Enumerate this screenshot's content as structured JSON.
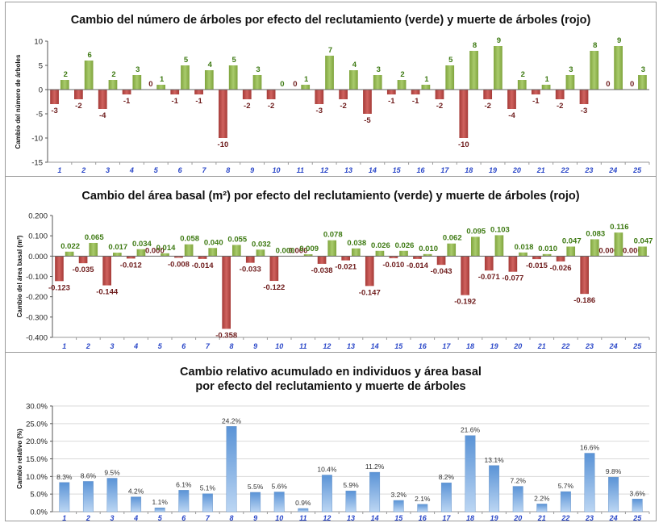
{
  "chart_data": [
    {
      "type": "bar",
      "title": "Cambio del número de árboles por efecto del reclutamiento (verde) y muerte de árboles (rojo)",
      "ylabel": "Cambio del número de árboles",
      "xlabel": "",
      "ylim": [
        -15,
        10
      ],
      "yticks": [
        "10",
        "5",
        "0",
        "-5",
        "-10",
        "-15"
      ],
      "yticks_values": [
        10,
        5,
        0,
        -5,
        -10,
        -15
      ],
      "grid": false,
      "categories": [
        "1",
        "2",
        "3",
        "4",
        "5",
        "6",
        "7",
        "8",
        "9",
        "10",
        "11",
        "12",
        "13",
        "14",
        "15",
        "16",
        "17",
        "18",
        "19",
        "20",
        "21",
        "22",
        "23",
        "24",
        "25"
      ],
      "series": [
        {
          "values": [
            -3,
            -2,
            -4,
            -1,
            0,
            -1,
            -1,
            -10,
            -2,
            -2,
            0,
            -3,
            -2,
            -5,
            -1,
            -1,
            -2,
            -10,
            -2,
            -4,
            -1,
            -2,
            -3,
            0,
            0
          ],
          "labels": [
            "-3",
            "-2",
            "-4",
            "-1",
            "0",
            "-1",
            "-1",
            "-10",
            "-2",
            "-2",
            "0",
            "-3",
            "-2",
            "-5",
            "-1",
            "-1",
            "-2",
            "-10",
            "-2",
            "-4",
            "-1",
            "-2",
            "-3",
            "0",
            "0"
          ],
          "color": "#c0504d"
        },
        {
          "values": [
            2,
            6,
            2,
            3,
            1,
            5,
            4,
            5,
            3,
            0,
            1,
            7,
            4,
            3,
            2,
            1,
            5,
            8,
            9,
            2,
            1,
            3,
            8,
            9,
            3
          ],
          "labels": [
            "2",
            "6",
            "2",
            "3",
            "1",
            "5",
            "4",
            "5",
            "3",
            "0",
            "1",
            "7",
            "4",
            "3",
            "2",
            "1",
            "5",
            "8",
            "9",
            "2",
            "1",
            "3",
            "8",
            "9",
            "3"
          ],
          "color": "#9bbb59"
        }
      ]
    },
    {
      "type": "bar",
      "title": "Cambio del área basal (m²) por efecto del reclutamiento (verde) y muerte de árboles (rojo)",
      "ylabel": "Cambio del área basal (m²)",
      "xlabel": "",
      "ylim": [
        -0.4,
        0.2
      ],
      "yticks": [
        "0.200",
        "0.100",
        "0.000",
        "-0.100",
        "-0.200",
        "-0.300",
        "-0.400"
      ],
      "yticks_values": [
        0.2,
        0.1,
        0,
        -0.1,
        -0.2,
        -0.3,
        -0.4
      ],
      "grid": false,
      "categories": [
        "1",
        "2",
        "3",
        "4",
        "5",
        "6",
        "7",
        "8",
        "9",
        "10",
        "11",
        "12",
        "13",
        "14",
        "15",
        "16",
        "17",
        "18",
        "19",
        "20",
        "21",
        "22",
        "23",
        "24",
        "25"
      ],
      "series": [
        {
          "values": [
            -0.123,
            -0.035,
            -0.144,
            -0.012,
            0.0,
            -0.008,
            -0.014,
            -0.358,
            -0.033,
            -0.122,
            0.0,
            -0.038,
            -0.021,
            -0.147,
            -0.01,
            -0.014,
            -0.043,
            -0.192,
            -0.071,
            -0.077,
            -0.015,
            -0.026,
            -0.186,
            0.0,
            0.0
          ],
          "labels": [
            "-0.123",
            "-0.035",
            "-0.144",
            "-0.012",
            "0.000",
            "-0.008",
            "-0.014",
            "-0.358",
            "-0.033",
            "-0.122",
            "0.000",
            "-0.038",
            "-0.021",
            "-0.147",
            "-0.010",
            "-0.014",
            "-0.043",
            "-0.192",
            "-0.071",
            "-0.077",
            "-0.015",
            "-0.026",
            "-0.186",
            "0.000",
            "0.000"
          ],
          "color": "#c0504d"
        },
        {
          "values": [
            0.022,
            0.065,
            0.017,
            0.034,
            0.014,
            0.058,
            0.04,
            0.055,
            0.032,
            0.0,
            0.009,
            0.078,
            0.038,
            0.026,
            0.026,
            0.01,
            0.062,
            0.095,
            0.103,
            0.018,
            0.01,
            0.047,
            0.083,
            0.116,
            0.047
          ],
          "labels": [
            "0.022",
            "0.065",
            "0.017",
            "0.034",
            "0.014",
            "0.058",
            "0.040",
            "0.055",
            "0.032",
            "0.000",
            "0.009",
            "0.078",
            "0.038",
            "0.026",
            "0.026",
            "0.010",
            "0.062",
            "0.095",
            "0.103",
            "0.018",
            "0.010",
            "0.047",
            "0.083",
            "0.116",
            "0.047"
          ],
          "color": "#9bbb59"
        }
      ]
    },
    {
      "type": "bar",
      "title": "Cambio relativo acumulado en individuos y área basal",
      "subtitle": "por efecto del reclutamiento y muerte de árboles",
      "ylabel": "Cambio relativo (%)",
      "xlabel": "",
      "ylim": [
        0,
        30
      ],
      "yticks": [
        "30.0%",
        "25.0%",
        "20.0%",
        "15.0%",
        "10.0%",
        "5.0%",
        "0.0%"
      ],
      "yticks_values": [
        30,
        25,
        20,
        15,
        10,
        5,
        0
      ],
      "grid": true,
      "categories": [
        "1",
        "2",
        "3",
        "4",
        "5",
        "6",
        "7",
        "8",
        "9",
        "10",
        "11",
        "12",
        "13",
        "14",
        "15",
        "16",
        "17",
        "18",
        "19",
        "20",
        "21",
        "22",
        "23",
        "24",
        "25"
      ],
      "series": [
        {
          "values": [
            8.3,
            8.6,
            9.5,
            4.2,
            1.1,
            6.1,
            5.1,
            24.2,
            5.5,
            5.6,
            0.9,
            10.4,
            5.9,
            11.2,
            3.2,
            2.1,
            8.2,
            21.6,
            13.1,
            7.2,
            2.2,
            5.7,
            16.6,
            9.8,
            3.6
          ],
          "labels": [
            "8.3%",
            "8.6%",
            "9.5%",
            "4.2%",
            "1.1%",
            "6.1%",
            "5.1%",
            "24.2%",
            "5.5%",
            "5.6%",
            "0.9%",
            "10.4%",
            "5.9%",
            "11.2%",
            "3.2%",
            "2.1%",
            "8.2%",
            "21.6%",
            "13.1%",
            "7.2%",
            "2.2%",
            "5.7%",
            "16.6%",
            "9.8%",
            "3.6%"
          ],
          "color": "#4f81bd"
        }
      ]
    }
  ]
}
